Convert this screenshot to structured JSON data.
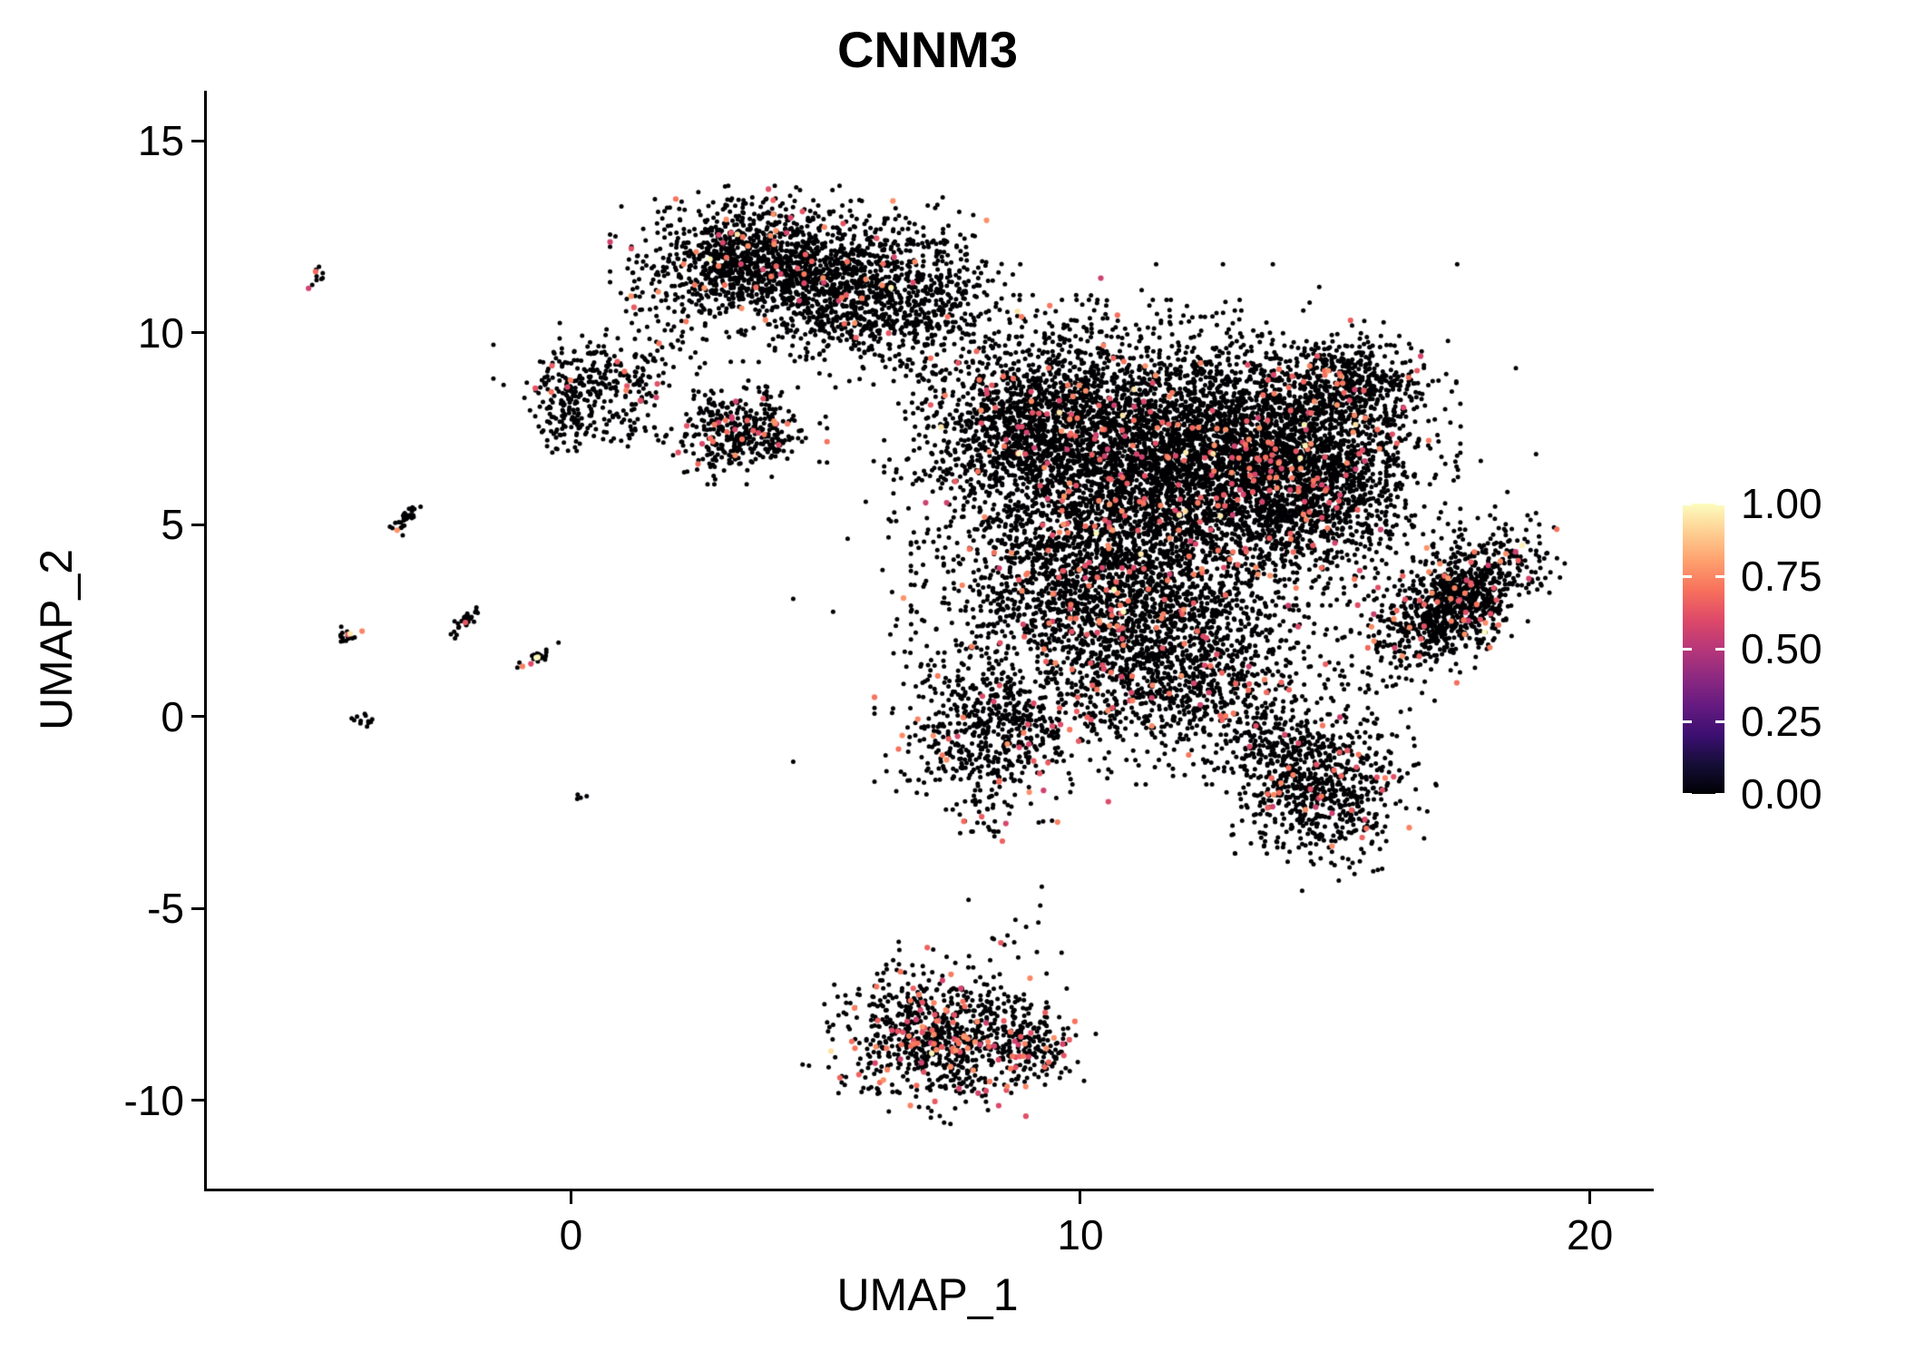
{
  "page": {
    "background": "#FFFFFF"
  },
  "chart_data": {
    "type": "scatter",
    "title": "CNNM3",
    "xlabel": "UMAP_1",
    "ylabel": "UMAP_2",
    "xlim": [
      -7.2,
      21.2
    ],
    "ylim": [
      -12.3,
      16.3
    ],
    "x_ticks": [
      0,
      10,
      20
    ],
    "y_ticks": [
      15,
      10,
      5,
      0,
      -5,
      -10
    ],
    "grid": false,
    "axis_color": "#000000",
    "text_color": "#000000",
    "legend_position": "right",
    "colorbar": {
      "labels": [
        "1.00",
        "0.75",
        "0.50",
        "0.25",
        "0.00"
      ],
      "values": [
        1,
        0.75,
        0.5,
        0.25,
        0
      ],
      "colormap": "magma",
      "stops": [
        {
          "t": 0.0,
          "color": "#000004"
        },
        {
          "t": 0.1,
          "color": "#140E36"
        },
        {
          "t": 0.2,
          "color": "#3B0F70"
        },
        {
          "t": 0.3,
          "color": "#641A80"
        },
        {
          "t": 0.4,
          "color": "#8C2981"
        },
        {
          "t": 0.5,
          "color": "#B73779"
        },
        {
          "t": 0.6,
          "color": "#DE4968"
        },
        {
          "t": 0.7,
          "color": "#F7705C"
        },
        {
          "t": 0.8,
          "color": "#FE9F6D"
        },
        {
          "t": 0.9,
          "color": "#FECE91"
        },
        {
          "t": 1.0,
          "color": "#FCFDBF"
        }
      ]
    },
    "point_value_classes": {
      "background": 0,
      "mid": [
        0.55,
        0.78
      ],
      "high": [
        0.93,
        1.0
      ]
    },
    "point_radius": {
      "background": 2.5,
      "expressing": 3.1
    },
    "seed": 42,
    "clusters": [
      {
        "name": "top-cluster-left",
        "cx": 3.55,
        "cy": 11.8,
        "sx": 1.05,
        "sy": 0.75,
        "rot": 0,
        "n": 1200,
        "red": 0.04,
        "yellow": 0.002
      },
      {
        "name": "top-cluster-right",
        "cx": 5.7,
        "cy": 11.0,
        "sx": 1.0,
        "sy": 0.9,
        "rot": 0,
        "n": 1000,
        "red": 0.02,
        "yellow": 0.001
      },
      {
        "name": "bridge-top-left",
        "cx": 1.8,
        "cy": 9.9,
        "sx": 0.5,
        "sy": 0.7,
        "rot": 0,
        "n": 50,
        "red": 0.02,
        "yellow": 0
      },
      {
        "name": "bridge-top-main",
        "cx": 7.2,
        "cy": 11.0,
        "sx": 0.55,
        "sy": 0.95,
        "rot": 0,
        "n": 120,
        "red": 0.02,
        "yellow": 0
      },
      {
        "name": "hook-top",
        "cx": 0.45,
        "cy": 8.9,
        "sx": 0.75,
        "sy": 0.5,
        "rot": 0,
        "n": 220,
        "red": 0.05,
        "yellow": 0
      },
      {
        "name": "hook-leg",
        "cx": -0.15,
        "cy": 7.9,
        "sx": 0.28,
        "sy": 0.5,
        "rot": 0,
        "n": 110,
        "red": 0.02,
        "yellow": 0
      },
      {
        "name": "hook-tail",
        "cx": 1.1,
        "cy": 7.6,
        "sx": 0.45,
        "sy": 0.4,
        "rot": 0,
        "n": 50,
        "red": 0.02,
        "yellow": 0
      },
      {
        "name": "mid-small",
        "cx": 3.3,
        "cy": 7.4,
        "sx": 0.62,
        "sy": 0.5,
        "rot": 0,
        "n": 380,
        "red": 0.06,
        "yellow": 0
      },
      {
        "name": "main-left",
        "cx": 9.2,
        "cy": 7.6,
        "sx": 1.15,
        "sy": 1.25,
        "rot": 0,
        "n": 1700,
        "red": 0.025,
        "yellow": 0.001
      },
      {
        "name": "main-center",
        "cx": 11.9,
        "cy": 6.8,
        "sx": 1.5,
        "sy": 1.5,
        "rot": 0,
        "n": 2900,
        "red": 0.035,
        "yellow": 0.002
      },
      {
        "name": "main-right",
        "cx": 14.3,
        "cy": 6.4,
        "sx": 1.15,
        "sy": 1.3,
        "rot": 0,
        "n": 1800,
        "red": 0.05,
        "yellow": 0.003
      },
      {
        "name": "main-top-right",
        "cx": 15.3,
        "cy": 8.7,
        "sx": 0.75,
        "sy": 0.6,
        "rot": 0,
        "n": 450,
        "red": 0.03,
        "yellow": 0
      },
      {
        "name": "main-lower-left",
        "cx": 10.4,
        "cy": 3.4,
        "sx": 1.4,
        "sy": 1.3,
        "rot": 0,
        "n": 1700,
        "red": 0.04,
        "yellow": 0.001
      },
      {
        "name": "main-lower-center",
        "cx": 11.9,
        "cy": 1.2,
        "sx": 1.25,
        "sy": 1.1,
        "rot": 0,
        "n": 1000,
        "red": 0.05,
        "yellow": 0.001
      },
      {
        "name": "lower-lobe",
        "cx": 8.2,
        "cy": -0.3,
        "sx": 0.85,
        "sy": 1.0,
        "rot": 0,
        "n": 650,
        "red": 0.07,
        "yellow": 0.002
      },
      {
        "name": "main-halo",
        "cx": 11.6,
        "cy": 5.3,
        "sx": 2.7,
        "sy": 2.4,
        "rot": 0,
        "n": 800,
        "red": 0.03,
        "yellow": 0.001
      },
      {
        "name": "right-band",
        "cx": 17.25,
        "cy": 2.9,
        "sx": 1.05,
        "sy": 0.52,
        "rot": 49,
        "n": 1000,
        "red": 0.05,
        "yellow": 0.003
      },
      {
        "name": "lower-right",
        "cx": 14.6,
        "cy": -1.7,
        "sx": 0.8,
        "sy": 0.95,
        "rot": 20,
        "n": 800,
        "red": 0.05,
        "yellow": 0.001
      },
      {
        "name": "connector-lr",
        "cx": 13.4,
        "cy": -0.4,
        "sx": 0.5,
        "sy": 0.5,
        "rot": 0,
        "n": 60,
        "red": 0.03,
        "yellow": 0
      },
      {
        "name": "bottom-main",
        "cx": 7.1,
        "cy": -8.3,
        "sx": 0.9,
        "sy": 0.8,
        "rot": -15,
        "n": 780,
        "red": 0.12,
        "yellow": 0.004
      },
      {
        "name": "bottom-tail",
        "cx": 8.9,
        "cy": -8.5,
        "sx": 0.55,
        "sy": 0.45,
        "rot": -25,
        "n": 200,
        "red": 0.1,
        "yellow": 0
      },
      {
        "name": "bottom-trail",
        "cx": 8.6,
        "cy": -5.6,
        "sx": 0.5,
        "sy": 0.9,
        "rot": 0,
        "n": 18,
        "red": 0.05,
        "yellow": 0
      },
      {
        "name": "isolate-1",
        "cx": -5.05,
        "cy": 11.45,
        "sx": 0.09,
        "sy": 0.11,
        "rot": 0,
        "n": 10,
        "red": 0.25,
        "yellow": 0
      },
      {
        "name": "isolate-2",
        "cx": -3.35,
        "cy": 5.1,
        "sx": 0.28,
        "sy": 0.08,
        "rot": 55,
        "n": 35,
        "red": 0.03,
        "yellow": 0
      },
      {
        "name": "isolate-3",
        "cx": -2.15,
        "cy": 2.45,
        "sx": 0.22,
        "sy": 0.07,
        "rot": 55,
        "n": 30,
        "red": 0.03,
        "yellow": 0
      },
      {
        "name": "isolate-4",
        "cx": -4.45,
        "cy": 2.1,
        "sx": 0.11,
        "sy": 0.13,
        "rot": 0,
        "n": 20,
        "red": 0.2,
        "yellow": 0.1
      },
      {
        "name": "isolate-5",
        "cx": -0.7,
        "cy": 1.55,
        "sx": 0.22,
        "sy": 0.08,
        "rot": 35,
        "n": 25,
        "red": 0.08,
        "yellow": 0.04
      },
      {
        "name": "isolate-6",
        "cx": -4.2,
        "cy": -0.1,
        "sx": 0.1,
        "sy": 0.08,
        "rot": 0,
        "n": 12,
        "red": 0.05,
        "yellow": 0
      },
      {
        "name": "isolate-7",
        "cx": 0.15,
        "cy": -2.1,
        "sx": 0.07,
        "sy": 0.07,
        "rot": 0,
        "n": 4,
        "red": 0,
        "yellow": 0
      },
      {
        "name": "below-lobe-dots",
        "cx": 7.9,
        "cy": -2.9,
        "sx": 0.4,
        "sy": 0.3,
        "rot": 0,
        "n": 10,
        "red": 0.05,
        "yellow": 0
      }
    ]
  }
}
